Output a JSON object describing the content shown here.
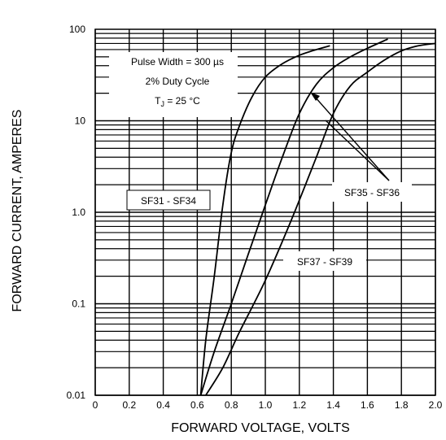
{
  "chart_data": {
    "type": "line",
    "title": "",
    "xlabel": "FORWARD VOLTAGE, VOLTS",
    "ylabel": "FORWARD CURRENT, AMPERES",
    "x_scale": "linear",
    "y_scale": "log",
    "xlim": [
      0,
      2.0
    ],
    "ylim": [
      0.01,
      100
    ],
    "grid": true,
    "x_ticks": [
      "0",
      "0.2",
      "0.4",
      "0.6",
      "0.8",
      "1.0",
      "1.2",
      "1.4",
      "1.6",
      "1.8",
      "2.0"
    ],
    "y_ticks": [
      "0.01",
      "0.1",
      "1.0",
      "10",
      "100"
    ],
    "annotations": {
      "conditions_line1": "Pulse Width = 300 µs",
      "conditions_line2": "2% Duty Cycle",
      "conditions_line3_prefix": "T",
      "conditions_line3_sub": "J",
      "conditions_line3_suffix": " = 25 °C"
    },
    "series": [
      {
        "name": "SF31 - SF34",
        "x": [
          0.62,
          0.65,
          0.7,
          0.75,
          0.8,
          0.85,
          0.92,
          1.0,
          1.1,
          1.2,
          1.3,
          1.38
        ],
        "y": [
          0.01,
          0.04,
          0.2,
          1.2,
          4.5,
          9,
          18,
          30,
          42,
          52,
          60,
          66
        ]
      },
      {
        "name": "SF35 - SF36",
        "x": [
          0.62,
          0.7,
          0.8,
          0.9,
          1.0,
          1.1,
          1.2,
          1.3,
          1.4,
          1.5,
          1.6,
          1.72
        ],
        "y": [
          0.01,
          0.03,
          0.1,
          0.35,
          1.2,
          4,
          12,
          25,
          38,
          50,
          62,
          78
        ]
      },
      {
        "name": "SF37 - SF39",
        "x": [
          0.65,
          0.75,
          0.85,
          1.0,
          1.15,
          1.3,
          1.4,
          1.5,
          1.6,
          1.7,
          1.8,
          1.9,
          2.0
        ],
        "y": [
          0.01,
          0.02,
          0.05,
          0.18,
          0.8,
          4,
          12,
          24,
          34,
          46,
          58,
          66,
          70
        ]
      }
    ]
  }
}
